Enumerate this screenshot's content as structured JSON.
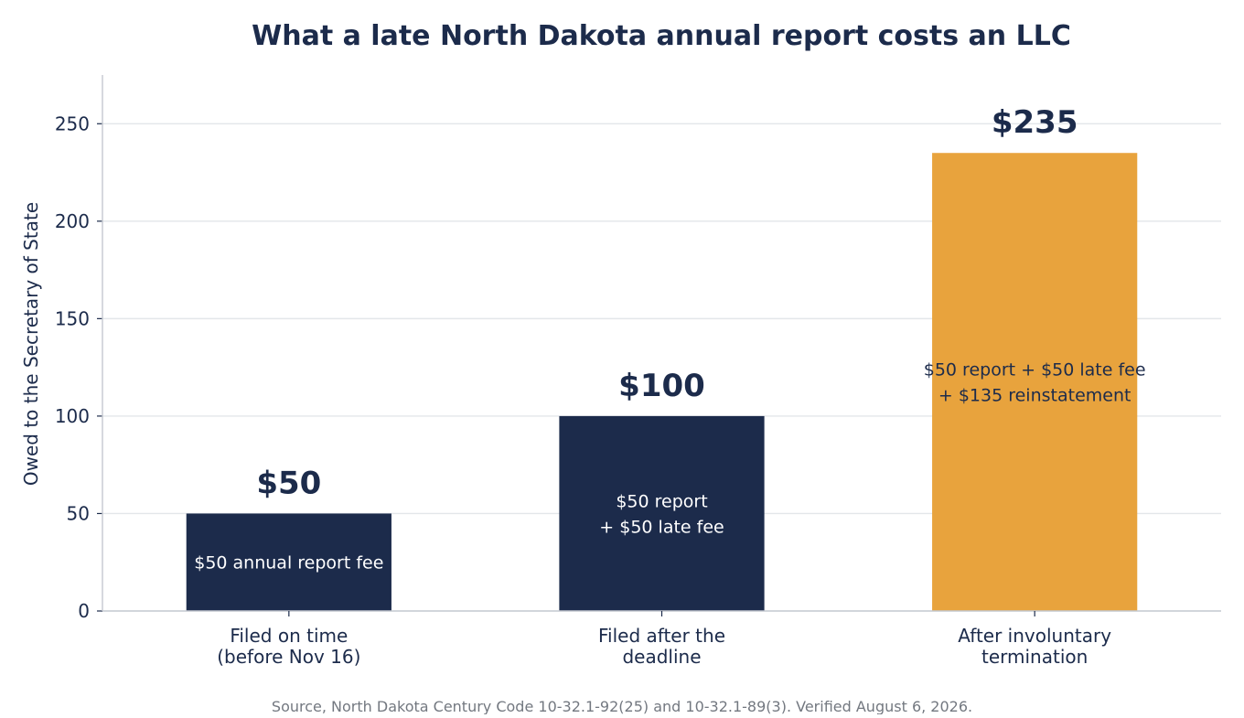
{
  "chart_data": {
    "type": "bar",
    "title": "What a late North Dakota annual report costs an LLC",
    "xlabel": "",
    "ylabel": "Owed to the Secretary of State",
    "ylim": [
      0,
      275
    ],
    "yticks": [
      0,
      50,
      100,
      150,
      200,
      250
    ],
    "grid": "horizontal",
    "categories": [
      [
        "Filed on time",
        "(before Nov 16)"
      ],
      [
        "Filed after the",
        "deadline"
      ],
      [
        "After involuntary",
        "termination"
      ]
    ],
    "values": [
      50,
      100,
      235
    ],
    "value_labels": [
      "$50",
      "$100",
      "$235"
    ],
    "bar_annotations": [
      [
        "$50 annual report fee"
      ],
      [
        "$50 report",
        "+ $50 late fee"
      ],
      [
        "$50 report + $50 late fee",
        "+ $135 reinstatement"
      ]
    ],
    "colors": {
      "navy": "#1c2b4b",
      "highlight": "#e8a33d",
      "grid": "#e3e6ea",
      "axis": "#c4c8cf",
      "source_text": "#737880"
    },
    "bar_colors": [
      "#1c2b4b",
      "#1c2b4b",
      "#e8a33d"
    ],
    "annotation_colors": [
      "#ffffff",
      "#ffffff",
      "#1c2b4b"
    ],
    "source": "Source, North Dakota Century Code 10-32.1-92(25) and 10-32.1-89(3). Verified August 6, 2026."
  }
}
